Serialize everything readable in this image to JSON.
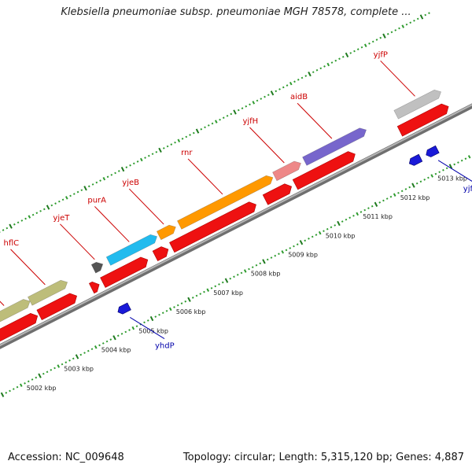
{
  "title": "Klebsiella pneumoniae subsp. pneumoniae MGH 78578, complete ...",
  "footer": {
    "accession": "Accession: NC_009648",
    "summary": "Topology: circular; Length: 5,315,120 bp; Genes: 4,887"
  },
  "colors": {
    "backbone": "#888888",
    "ruler_dot": "#2e9b2e",
    "ruler_major": "#1f7a1f",
    "cds_red": "#ee1111",
    "forward_label": "#cc0000",
    "reverse_label": "#0000aa",
    "reverse_gene": "#1a1ad8"
  },
  "scale_labels": [
    "5002 kbp",
    "5003 kbp",
    "5004 kbp",
    "5005 kbp",
    "5006 kbp",
    "5007 kbp",
    "5008 kbp",
    "5009 kbp",
    "5010 kbp",
    "5011 kbp",
    "5012 kbp",
    "5013 kbp"
  ],
  "forward_genes": [
    {
      "name": "",
      "color": "#c0c0c0",
      "start_kbp": 4999.2,
      "end_kbp": 5001.3
    },
    {
      "name": "hflK",
      "color": "#bdbd7a",
      "start_kbp": 5001.4,
      "end_kbp": 5002.6
    },
    {
      "name": "hflC",
      "color": "#bdbd7a",
      "start_kbp": 5002.6,
      "end_kbp": 5003.6
    },
    {
      "name": "yjeT",
      "color": "#555555",
      "start_kbp": 5004.3,
      "end_kbp": 5004.55
    },
    {
      "name": "purA",
      "color": "#22bbee",
      "start_kbp": 5004.7,
      "end_kbp": 5006.0
    },
    {
      "name": "yjeB",
      "color": "#ff9900",
      "start_kbp": 5006.05,
      "end_kbp": 5006.5
    },
    {
      "name": "rnr",
      "color": "#ff9900",
      "start_kbp": 5006.6,
      "end_kbp": 5009.1
    },
    {
      "name": "yjfH",
      "color": "#ee8888",
      "start_kbp": 5009.15,
      "end_kbp": 5009.85
    },
    {
      "name": "aidB",
      "color": "#7766cc",
      "start_kbp": 5009.95,
      "end_kbp": 5011.6
    },
    {
      "name": "yjfP",
      "color": "#c0c0c0",
      "start_kbp": 5012.4,
      "end_kbp": 5013.6
    }
  ],
  "cds_segments": [
    {
      "start_kbp": 4999.3,
      "end_kbp": 5000.3
    },
    {
      "start_kbp": 5001.5,
      "end_kbp": 5002.6
    },
    {
      "start_kbp": 5002.65,
      "end_kbp": 5003.65
    },
    {
      "start_kbp": 5004.05,
      "end_kbp": 5004.25
    },
    {
      "start_kbp": 5004.35,
      "end_kbp": 5005.55
    },
    {
      "start_kbp": 5005.75,
      "end_kbp": 5006.1
    },
    {
      "start_kbp": 5006.2,
      "end_kbp": 5008.45
    },
    {
      "start_kbp": 5008.7,
      "end_kbp": 5009.4
    },
    {
      "start_kbp": 5009.5,
      "end_kbp": 5011.1
    },
    {
      "start_kbp": 5012.3,
      "end_kbp": 5013.6
    }
  ],
  "reverse_genes": [
    {
      "name": "yhdP",
      "start_kbp": 5004.35,
      "end_kbp": 5004.65
    },
    {
      "name": "",
      "start_kbp": 5012.15,
      "end_kbp": 5012.45
    },
    {
      "name": "yjfN",
      "start_kbp": 5012.6,
      "end_kbp": 5012.9
    }
  ]
}
